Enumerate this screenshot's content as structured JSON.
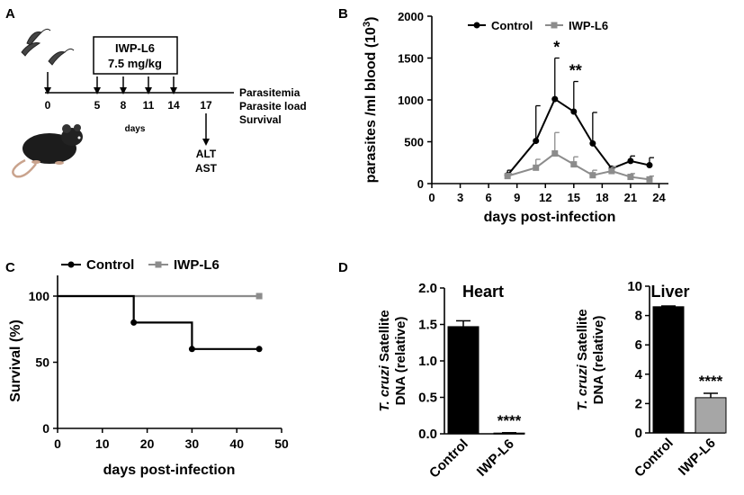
{
  "panel_labels": {
    "a": "A",
    "b": "B",
    "c": "C",
    "d": "D"
  },
  "schematic": {
    "treatment_label": "IWP-L6",
    "dose_label": "7.5 mg/kg",
    "timeline_days": [
      "0",
      "5",
      "8",
      "11",
      "14",
      "17"
    ],
    "axis_label": "days",
    "outcomes": [
      "Parasitemia",
      "Parasite load",
      "Survival"
    ],
    "liver_tests": [
      "ALT",
      "AST"
    ]
  },
  "colors": {
    "control": "#000000",
    "iwp": "#8c8c8c"
  },
  "chart_data": [
    {
      "id": "parasitemia",
      "type": "line",
      "xlabel": "days post-infection",
      "ylabel": "parasites /ml blood (10",
      "ylabel_sup": "3",
      "ylabel_close": ")",
      "xlim": [
        0,
        25
      ],
      "ylim": [
        0,
        2000
      ],
      "xticks": [
        0,
        3,
        6,
        9,
        12,
        15,
        18,
        21,
        24
      ],
      "yticks": [
        0,
        500,
        1000,
        1500,
        2000
      ],
      "series": [
        {
          "name": "Control",
          "x": [
            8,
            11,
            13,
            15,
            17,
            19,
            21,
            23
          ],
          "y": [
            100,
            510,
            1010,
            860,
            480,
            180,
            270,
            220
          ],
          "err": [
            60,
            420,
            490,
            360,
            370,
            20,
            60,
            90
          ]
        },
        {
          "name": "IWP-L6",
          "x": [
            8,
            11,
            13,
            15,
            17,
            19,
            21,
            23
          ],
          "y": [
            90,
            190,
            360,
            230,
            100,
            150,
            80,
            50
          ],
          "err": [
            30,
            100,
            250,
            90,
            60,
            50,
            40,
            40
          ]
        }
      ],
      "annotations": [
        {
          "x": 13,
          "text": "*"
        },
        {
          "x": 15,
          "text": "**"
        }
      ]
    },
    {
      "id": "survival",
      "type": "line",
      "xlabel": "days post-infection",
      "ylabel": "Survival (%)",
      "xlim": [
        0,
        50
      ],
      "ylim": [
        0,
        110
      ],
      "xticks": [
        0,
        10,
        20,
        30,
        40,
        50
      ],
      "yticks": [
        0,
        50,
        100
      ],
      "series": [
        {
          "name": "Control",
          "steps": [
            [
              0,
              100
            ],
            [
              17,
              100
            ],
            [
              17,
              80
            ],
            [
              30,
              80
            ],
            [
              30,
              60
            ],
            [
              45,
              60
            ]
          ],
          "markers": [
            [
              17,
              80
            ],
            [
              30,
              60
            ],
            [
              45,
              60
            ]
          ]
        },
        {
          "name": "IWP-L6",
          "steps": [
            [
              0,
              100
            ],
            [
              45,
              100
            ]
          ],
          "markers": [
            [
              45,
              100
            ]
          ]
        }
      ]
    },
    {
      "id": "heart",
      "type": "bar",
      "title": "Heart",
      "ylabel_italic": "T. cruzi",
      "ylabel_rest": " Satellite",
      "ylabel_line2": "DNA (relative)",
      "categories": [
        "Control",
        "IWP-L6"
      ],
      "values": [
        1.47,
        0.01
      ],
      "err": [
        0.08,
        0.005
      ],
      "ylim": [
        0,
        2.0
      ],
      "yticks": [
        "0.0",
        "0.5",
        "1.0",
        "1.5",
        "2.0"
      ],
      "significance": "****"
    },
    {
      "id": "liver",
      "type": "bar",
      "title": "Liver",
      "ylabel_italic": "T. cruzi",
      "ylabel_rest": " Satellite",
      "ylabel_line2": "DNA (relative)",
      "categories": [
        "Control",
        "IWP-L6"
      ],
      "values": [
        8.6,
        2.4
      ],
      "err": [
        0.05,
        0.3
      ],
      "ylim": [
        0,
        10
      ],
      "yticks": [
        "0",
        "2",
        "4",
        "6",
        "8",
        "10"
      ],
      "significance": "****"
    }
  ]
}
